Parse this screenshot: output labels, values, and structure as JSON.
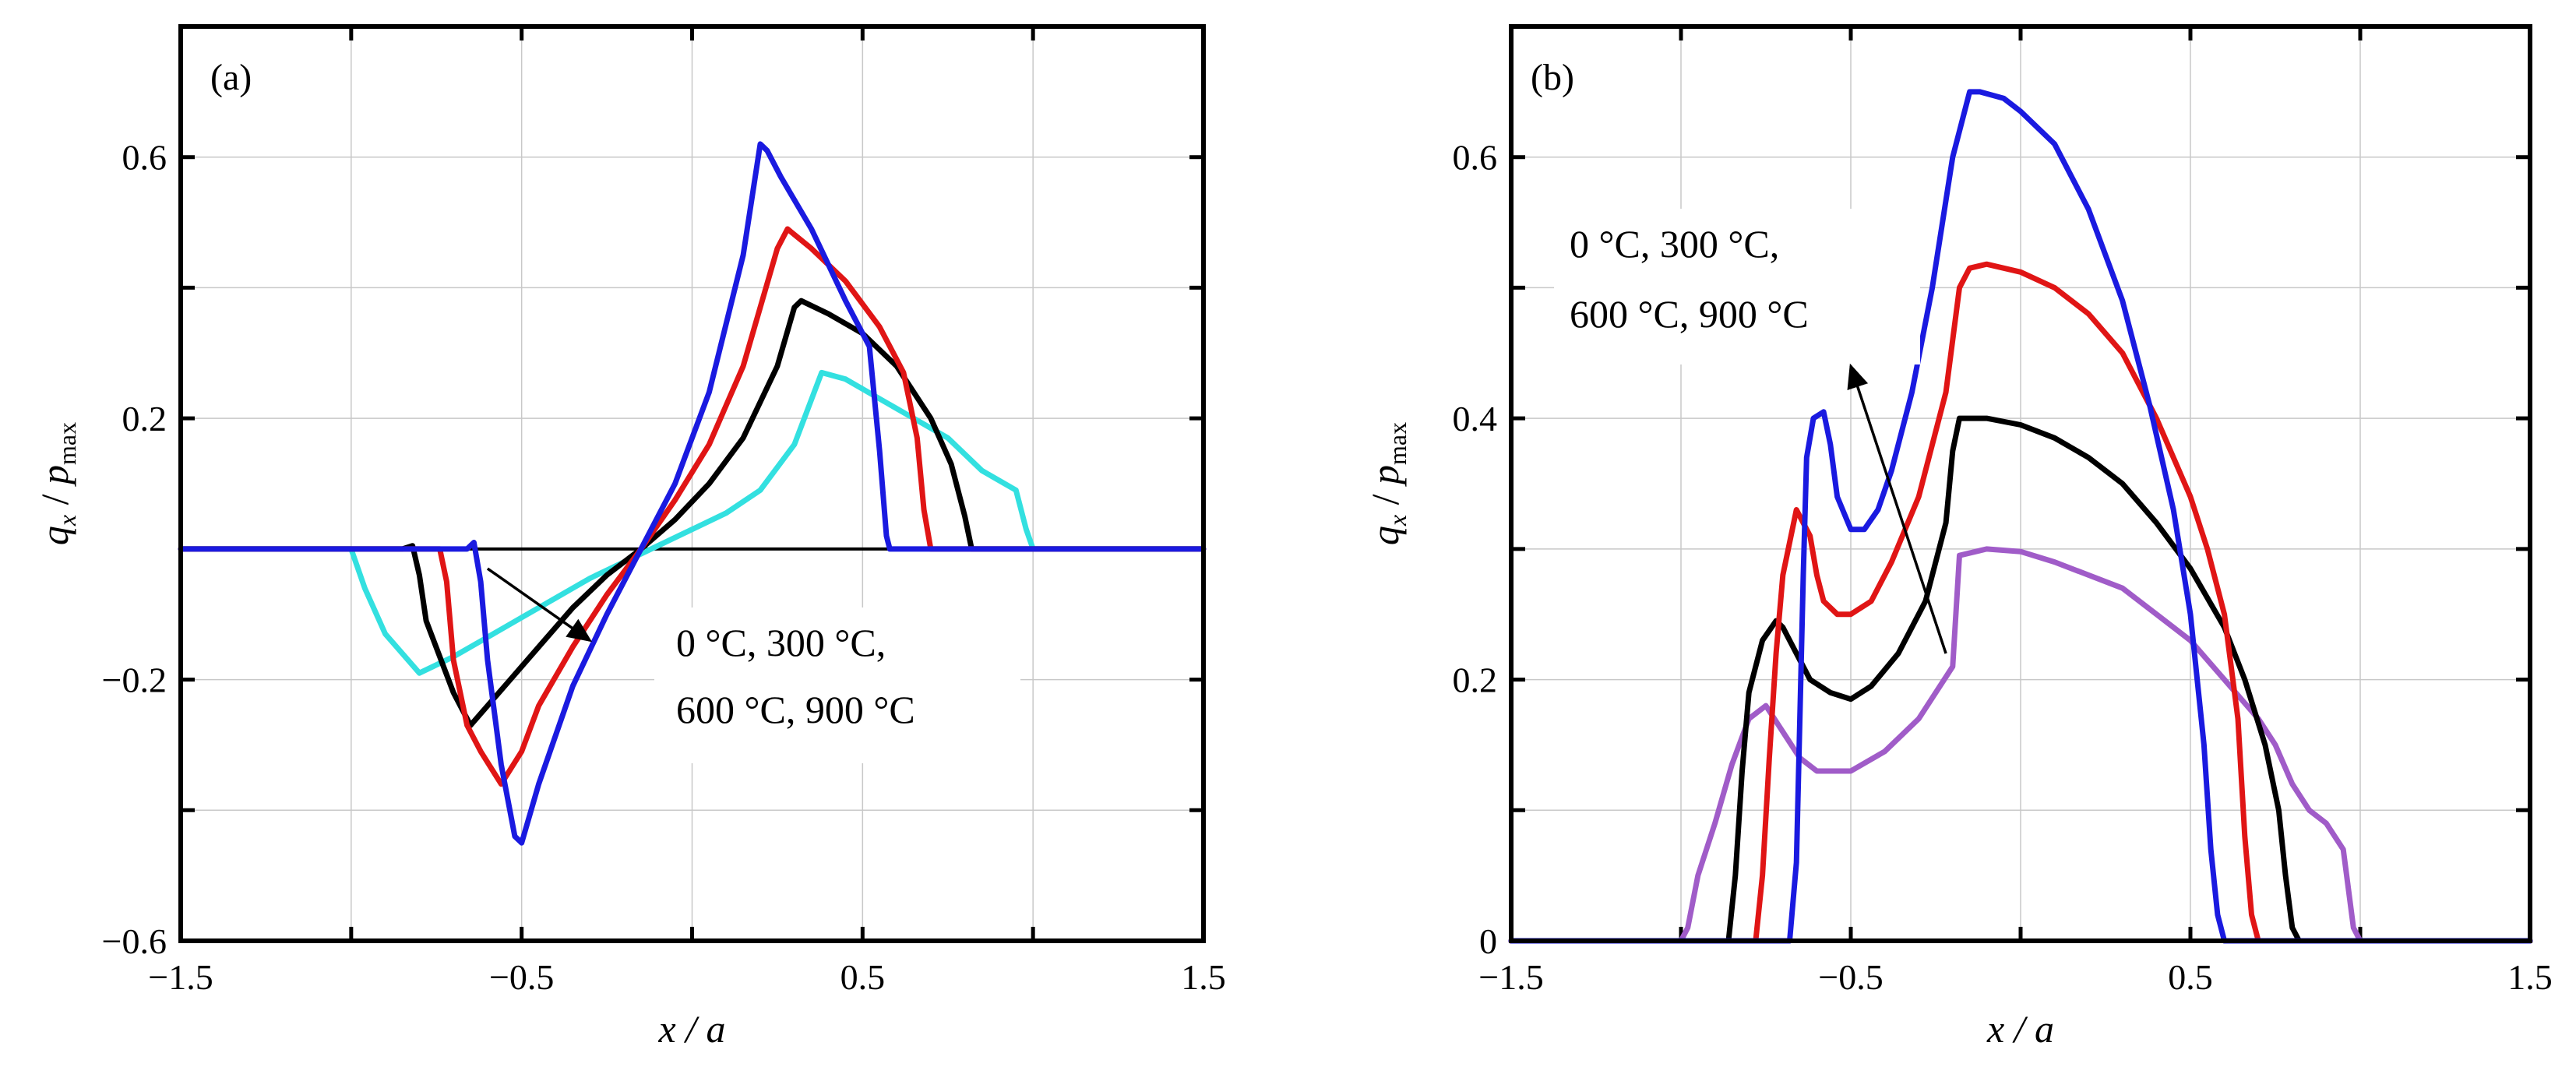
{
  "chart_data": [
    {
      "type": "line",
      "panel": "(a)",
      "xlabel": "x / a",
      "ylabel": "q_x / p_max",
      "xlim": [
        -1.5,
        1.5
      ],
      "ylim": [
        -0.6,
        0.8
      ],
      "xticks": [
        -1.5,
        -0.5,
        0.5,
        1.5
      ],
      "xtick_labels": [
        "−1.5",
        "−0.5",
        "0.5",
        "1.5"
      ],
      "yticks": [
        -0.6,
        -0.2,
        0.2,
        0.6
      ],
      "ytick_labels": [
        "−0.6",
        "−0.2",
        "0.2",
        "0.6"
      ],
      "annotation_lines": [
        "0 °C, 300 °C,",
        "600 °C, 900 °C"
      ],
      "annotation_arrow": {
        "from": [
          -0.6,
          -0.03
        ],
        "to": [
          -0.3,
          -0.14
        ]
      },
      "series": [
        {
          "name": "0 °C",
          "color": "#33e0e0",
          "x": [
            -1.5,
            -1.0,
            -0.96,
            -0.9,
            -0.8,
            -0.7,
            -0.6,
            -0.5,
            -0.4,
            -0.3,
            -0.2,
            -0.1,
            0.0,
            0.1,
            0.2,
            0.3,
            0.38,
            0.45,
            0.55,
            0.65,
            0.75,
            0.85,
            0.95,
            0.98,
            1.0,
            1.5
          ],
          "y": [
            0.0,
            0.0,
            -0.06,
            -0.13,
            -0.19,
            -0.165,
            -0.135,
            -0.105,
            -0.075,
            -0.045,
            -0.02,
            0.005,
            0.03,
            0.055,
            0.09,
            0.16,
            0.27,
            0.26,
            0.23,
            0.2,
            0.17,
            0.12,
            0.09,
            0.03,
            0.0,
            0.0
          ]
        },
        {
          "name": "300 °C",
          "color": "#000000",
          "x": [
            -1.5,
            -0.85,
            -0.82,
            -0.8,
            -0.78,
            -0.7,
            -0.65,
            -0.55,
            -0.45,
            -0.35,
            -0.25,
            -0.15,
            -0.05,
            0.05,
            0.15,
            0.25,
            0.3,
            0.32,
            0.4,
            0.5,
            0.6,
            0.7,
            0.76,
            0.8,
            0.82,
            0.85,
            1.5
          ],
          "y": [
            0.0,
            0.0,
            0.005,
            -0.04,
            -0.11,
            -0.22,
            -0.27,
            -0.21,
            -0.15,
            -0.09,
            -0.04,
            0.0,
            0.045,
            0.1,
            0.17,
            0.28,
            0.37,
            0.38,
            0.36,
            0.33,
            0.28,
            0.2,
            0.13,
            0.05,
            0.0,
            0.0,
            0.0
          ]
        },
        {
          "name": "600 °C",
          "color": "#e01515",
          "x": [
            -1.5,
            -0.74,
            -0.72,
            -0.7,
            -0.66,
            -0.62,
            -0.56,
            -0.5,
            -0.45,
            -0.35,
            -0.25,
            -0.15,
            -0.05,
            0.05,
            0.15,
            0.25,
            0.28,
            0.35,
            0.45,
            0.55,
            0.62,
            0.66,
            0.68,
            0.7,
            1.5
          ],
          "y": [
            0.0,
            0.0,
            -0.05,
            -0.17,
            -0.27,
            -0.31,
            -0.36,
            -0.31,
            -0.24,
            -0.15,
            -0.07,
            0.0,
            0.075,
            0.16,
            0.28,
            0.46,
            0.49,
            0.46,
            0.41,
            0.34,
            0.27,
            0.17,
            0.06,
            0.0,
            0.0
          ]
        },
        {
          "name": "900 °C",
          "color": "#1a1ae0",
          "x": [
            -1.5,
            -0.66,
            -0.64,
            -0.62,
            -0.6,
            -0.56,
            -0.52,
            -0.5,
            -0.45,
            -0.35,
            -0.25,
            -0.15,
            -0.05,
            0.05,
            0.15,
            0.2,
            0.22,
            0.26,
            0.35,
            0.45,
            0.52,
            0.55,
            0.57,
            0.58,
            1.5
          ],
          "y": [
            0.0,
            0.0,
            0.01,
            -0.05,
            -0.17,
            -0.33,
            -0.44,
            -0.45,
            -0.36,
            -0.21,
            -0.1,
            0.0,
            0.1,
            0.24,
            0.45,
            0.62,
            0.61,
            0.57,
            0.49,
            0.38,
            0.31,
            0.15,
            0.02,
            0.0,
            0.0
          ]
        }
      ]
    },
    {
      "type": "line",
      "panel": "(b)",
      "xlabel": "x / a",
      "ylabel": "q_x / p_max",
      "xlim": [
        -1.5,
        1.5
      ],
      "ylim": [
        0,
        0.7
      ],
      "xticks": [
        -1.5,
        -0.5,
        0.5,
        1.5
      ],
      "xtick_labels": [
        "−1.5",
        "−0.5",
        "0.5",
        "1.5"
      ],
      "yticks": [
        0,
        0.2,
        0.4,
        0.6
      ],
      "ytick_labels": [
        "0",
        "0.2",
        "0.4",
        "0.6"
      ],
      "annotation_lines": [
        "0 °C, 300 °C,",
        "600 °C, 900 °C"
      ],
      "annotation_arrow": {
        "from": [
          -0.22,
          0.22
        ],
        "to": [
          -0.5,
          0.44
        ]
      },
      "series": [
        {
          "name": "0 °C",
          "color": "#a05cc8",
          "x": [
            -1.5,
            -1.0,
            -0.98,
            -0.95,
            -0.9,
            -0.85,
            -0.8,
            -0.75,
            -0.7,
            -0.65,
            -0.6,
            -0.5,
            -0.4,
            -0.3,
            -0.2,
            -0.18,
            -0.1,
            0.0,
            0.1,
            0.2,
            0.3,
            0.4,
            0.5,
            0.6,
            0.7,
            0.75,
            0.8,
            0.85,
            0.9,
            0.95,
            0.98,
            1.0,
            1.5
          ],
          "y": [
            0.0,
            0.0,
            0.01,
            0.05,
            0.09,
            0.135,
            0.17,
            0.18,
            0.16,
            0.14,
            0.13,
            0.13,
            0.145,
            0.17,
            0.21,
            0.295,
            0.3,
            0.298,
            0.29,
            0.28,
            0.27,
            0.25,
            0.23,
            0.2,
            0.17,
            0.15,
            0.12,
            0.1,
            0.09,
            0.07,
            0.01,
            0.0,
            0.0
          ]
        },
        {
          "name": "300 °C",
          "color": "#000000",
          "x": [
            -1.5,
            -0.86,
            -0.84,
            -0.82,
            -0.8,
            -0.76,
            -0.72,
            -0.7,
            -0.66,
            -0.62,
            -0.56,
            -0.5,
            -0.44,
            -0.36,
            -0.28,
            -0.22,
            -0.2,
            -0.18,
            -0.1,
            0.0,
            0.1,
            0.2,
            0.3,
            0.4,
            0.5,
            0.6,
            0.66,
            0.72,
            0.76,
            0.78,
            0.8,
            0.82,
            1.5
          ],
          "y": [
            0.0,
            0.0,
            0.05,
            0.13,
            0.19,
            0.23,
            0.245,
            0.24,
            0.22,
            0.2,
            0.19,
            0.185,
            0.195,
            0.22,
            0.26,
            0.32,
            0.375,
            0.4,
            0.4,
            0.395,
            0.385,
            0.37,
            0.35,
            0.32,
            0.285,
            0.24,
            0.2,
            0.15,
            0.1,
            0.05,
            0.01,
            0.0,
            0.0
          ]
        },
        {
          "name": "600 °C",
          "color": "#e01515",
          "x": [
            -1.5,
            -0.78,
            -0.76,
            -0.74,
            -0.72,
            -0.7,
            -0.66,
            -0.62,
            -0.6,
            -0.58,
            -0.54,
            -0.5,
            -0.44,
            -0.38,
            -0.3,
            -0.22,
            -0.18,
            -0.15,
            -0.1,
            0.0,
            0.1,
            0.2,
            0.3,
            0.4,
            0.5,
            0.55,
            0.6,
            0.64,
            0.66,
            0.68,
            0.7,
            1.5
          ],
          "y": [
            0.0,
            0.0,
            0.05,
            0.14,
            0.22,
            0.28,
            0.33,
            0.31,
            0.28,
            0.26,
            0.25,
            0.25,
            0.26,
            0.29,
            0.34,
            0.42,
            0.5,
            0.515,
            0.518,
            0.512,
            0.5,
            0.48,
            0.45,
            0.4,
            0.34,
            0.3,
            0.25,
            0.17,
            0.08,
            0.02,
            0.0,
            0.0
          ]
        },
        {
          "name": "900 °C",
          "color": "#1a1ae0",
          "x": [
            -1.5,
            -0.68,
            -0.66,
            -0.65,
            -0.64,
            -0.63,
            -0.61,
            -0.58,
            -0.56,
            -0.54,
            -0.5,
            -0.46,
            -0.42,
            -0.38,
            -0.32,
            -0.26,
            -0.2,
            -0.15,
            -0.12,
            -0.05,
            0.0,
            0.1,
            0.2,
            0.3,
            0.38,
            0.45,
            0.5,
            0.54,
            0.56,
            0.58,
            0.6,
            1.5
          ],
          "y": [
            0.0,
            0.0,
            0.06,
            0.17,
            0.28,
            0.37,
            0.4,
            0.405,
            0.38,
            0.34,
            0.315,
            0.315,
            0.33,
            0.36,
            0.42,
            0.5,
            0.6,
            0.65,
            0.65,
            0.645,
            0.635,
            0.61,
            0.56,
            0.49,
            0.41,
            0.33,
            0.25,
            0.15,
            0.07,
            0.02,
            0.0,
            0.0
          ]
        }
      ]
    }
  ]
}
